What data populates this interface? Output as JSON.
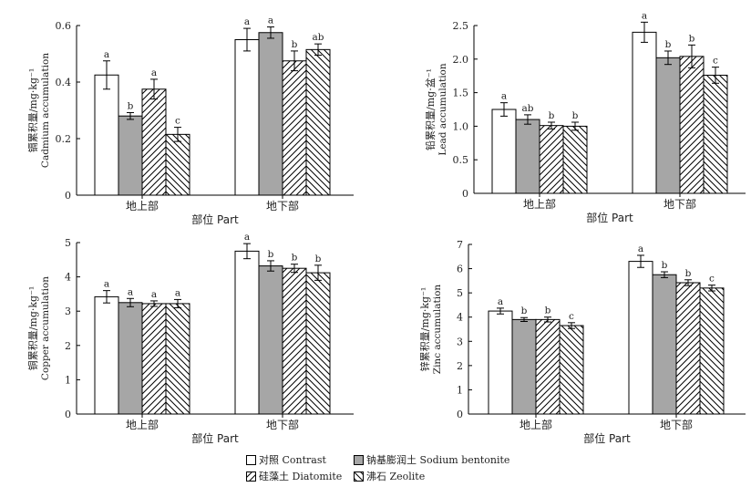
{
  "colors": {
    "contrast": "#ffffff",
    "sodium_bentonite": "#a6a6a6",
    "outline": "#000000"
  },
  "legend": {
    "items": [
      {
        "label": "对照 Contrast",
        "pattern": "white"
      },
      {
        "label": "钠基膨润土 Sodium bentonite",
        "pattern": "gray"
      },
      {
        "label": "硅藻土 Diatomite",
        "pattern": "hatch-right"
      },
      {
        "label": "沸石 Zeolite",
        "pattern": "hatch-left"
      }
    ]
  },
  "chart_data": [
    {
      "type": "bar",
      "ylabel_cn": "镉累积量/mg·kg⁻¹",
      "ylabel_en": "Cadmium accumulation",
      "xlabel": "部位 Part",
      "categories": [
        "地上部",
        "地下部"
      ],
      "ylim": [
        0,
        0.6
      ],
      "yticks": [
        "0",
        "0.2",
        "0.4",
        "0.6"
      ],
      "ytick_values": [
        0,
        0.2,
        0.4,
        0.6
      ],
      "series": [
        {
          "name": "对照 Contrast",
          "values": [
            0.425,
            0.55
          ],
          "errors": [
            0.05,
            0.04
          ],
          "labels": [
            "a",
            "a"
          ]
        },
        {
          "name": "钠基膨润土 Sodium bentonite",
          "values": [
            0.28,
            0.575
          ],
          "errors": [
            0.012,
            0.02
          ],
          "labels": [
            "b",
            "a"
          ]
        },
        {
          "name": "硅藻土 Diatomite",
          "values": [
            0.375,
            0.475
          ],
          "errors": [
            0.035,
            0.035
          ],
          "labels": [
            "a",
            "b"
          ]
        },
        {
          "name": "沸石 Zeolite",
          "values": [
            0.215,
            0.515
          ],
          "errors": [
            0.025,
            0.02
          ],
          "labels": [
            "c",
            "ab"
          ]
        }
      ]
    },
    {
      "type": "bar",
      "ylabel_cn": "铅累积量/mg·盆⁻¹",
      "ylabel_en": "Lead accumulation",
      "xlabel": "部位 Part",
      "categories": [
        "地上部",
        "地下部"
      ],
      "ylim": [
        0,
        2.5
      ],
      "yticks": [
        "0",
        "0.5",
        "1.0",
        "1.5",
        "2.0",
        "2.5"
      ],
      "ytick_values": [
        0,
        0.5,
        1.0,
        1.5,
        2.0,
        2.5
      ],
      "series": [
        {
          "name": "对照 Contrast",
          "values": [
            1.25,
            2.4
          ],
          "errors": [
            0.1,
            0.15
          ],
          "labels": [
            "a",
            "a"
          ]
        },
        {
          "name": "钠基膨润土 Sodium bentonite",
          "values": [
            1.1,
            2.02
          ],
          "errors": [
            0.07,
            0.1
          ],
          "labels": [
            "ab",
            "b"
          ]
        },
        {
          "name": "硅藻土 Diatomite",
          "values": [
            1.01,
            2.04
          ],
          "errors": [
            0.05,
            0.17
          ],
          "labels": [
            "b",
            "b"
          ]
        },
        {
          "name": "沸石 Zeolite",
          "values": [
            1.0,
            1.76
          ],
          "errors": [
            0.06,
            0.12
          ],
          "labels": [
            "b",
            "c"
          ]
        }
      ]
    },
    {
      "type": "bar",
      "ylabel_cn": "铜累积量/mg·kg⁻¹",
      "ylabel_en": "Copper accumulation",
      "xlabel": "部位 Part",
      "categories": [
        "地上部",
        "地下部"
      ],
      "ylim": [
        0,
        5
      ],
      "yticks": [
        "0",
        "1",
        "2",
        "3",
        "4",
        "5"
      ],
      "ytick_values": [
        0,
        1,
        2,
        3,
        4,
        5
      ],
      "series": [
        {
          "name": "对照 Contrast",
          "values": [
            3.42,
            4.75
          ],
          "errors": [
            0.18,
            0.22
          ],
          "labels": [
            "a",
            "a"
          ]
        },
        {
          "name": "钠基膨润土 Sodium bentonite",
          "values": [
            3.25,
            4.32
          ],
          "errors": [
            0.12,
            0.15
          ],
          "labels": [
            "a",
            "b"
          ]
        },
        {
          "name": "硅藻土 Diatomite",
          "values": [
            3.22,
            4.25
          ],
          "errors": [
            0.08,
            0.12
          ],
          "labels": [
            "a",
            "b"
          ]
        },
        {
          "name": "沸石 Zeolite",
          "values": [
            3.22,
            4.12
          ],
          "errors": [
            0.12,
            0.22
          ],
          "labels": [
            "a",
            "b"
          ]
        }
      ]
    },
    {
      "type": "bar",
      "ylabel_cn": "锌累积量/mg·kg⁻¹",
      "ylabel_en": "Zinc accumulation",
      "xlabel": "部位 Part",
      "categories": [
        "地上部",
        "地下部"
      ],
      "ylim": [
        0,
        7
      ],
      "yticks": [
        "0",
        "1",
        "2",
        "3",
        "4",
        "5",
        "6",
        "7"
      ],
      "ytick_values": [
        0,
        1,
        2,
        3,
        4,
        5,
        6,
        7
      ],
      "series": [
        {
          "name": "对照 Contrast",
          "values": [
            4.25,
            6.3
          ],
          "errors": [
            0.12,
            0.25
          ],
          "labels": [
            "a",
            "a"
          ]
        },
        {
          "name": "钠基膨润土 Sodium bentonite",
          "values": [
            3.9,
            5.75
          ],
          "errors": [
            0.08,
            0.12
          ],
          "labels": [
            "b",
            "b"
          ]
        },
        {
          "name": "硅藻土 Diatomite",
          "values": [
            3.9,
            5.42
          ],
          "errors": [
            0.1,
            0.12
          ],
          "labels": [
            "b",
            "b"
          ]
        },
        {
          "name": "沸石 Zeolite",
          "values": [
            3.65,
            5.2
          ],
          "errors": [
            0.12,
            0.12
          ],
          "labels": [
            "c",
            "c"
          ]
        }
      ]
    }
  ]
}
